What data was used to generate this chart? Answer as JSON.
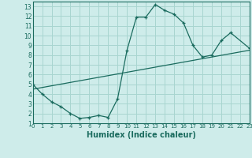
{
  "xlabel": "Humidex (Indice chaleur)",
  "ylabel": "",
  "background_color": "#ceecea",
  "grid_color": "#a8d5d0",
  "line_color": "#1a6b5e",
  "curve1_x": [
    0,
    1,
    2,
    3,
    4,
    5,
    6,
    7,
    8,
    9,
    10,
    11,
    12,
    13,
    14,
    15,
    16,
    17,
    18,
    19,
    20,
    21,
    23
  ],
  "curve1_y": [
    5.0,
    4.0,
    3.2,
    2.7,
    2.0,
    1.5,
    1.6,
    1.8,
    1.6,
    3.5,
    8.5,
    11.9,
    11.9,
    13.2,
    12.6,
    12.2,
    11.3,
    9.0,
    7.8,
    8.0,
    9.5,
    10.3,
    8.7
  ],
  "curve2_x": [
    0,
    23
  ],
  "curve2_y": [
    4.5,
    8.5
  ],
  "xlim": [
    0,
    23
  ],
  "ylim": [
    1,
    13.5
  ],
  "yticks": [
    1,
    2,
    3,
    4,
    5,
    6,
    7,
    8,
    9,
    10,
    11,
    12,
    13
  ],
  "xticks": [
    0,
    1,
    2,
    3,
    4,
    5,
    6,
    7,
    8,
    9,
    10,
    11,
    12,
    13,
    14,
    15,
    16,
    17,
    18,
    19,
    20,
    21,
    22,
    23
  ]
}
